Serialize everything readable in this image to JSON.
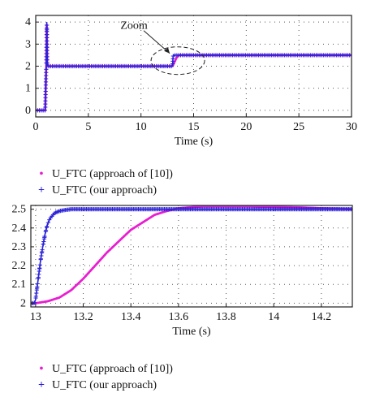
{
  "colors": {
    "approach10": "#e81fd0",
    "ours": "#2b22d6",
    "axes_bg": "#ffffff",
    "grid": "#555555"
  },
  "legend": [
    {
      "marker": "•",
      "label": "U_FTC (approach of [10])",
      "color": "#e81fd0"
    },
    {
      "marker": "+",
      "label": "U_FTC (our approach)",
      "color": "#2b22d6"
    }
  ],
  "chart_data": [
    {
      "type": "line",
      "xlabel": "Time (s)",
      "ylabel": "",
      "xlim": [
        0,
        30
      ],
      "ylim": [
        -0.3,
        4.3
      ],
      "xticks": [
        0,
        5,
        10,
        15,
        20,
        25,
        30
      ],
      "yticks": [
        0,
        1,
        2,
        3,
        4
      ],
      "grid": true,
      "annotation": {
        "text": "Zoom",
        "target_x": 13.5,
        "target_y": 2.25
      },
      "series": [
        {
          "name": "U_FTC (approach of [10])",
          "color": "#e81fd0",
          "x": [
            0,
            0.9,
            1.0,
            1.05,
            1.1,
            13.0,
            13.2,
            13.4,
            13.6,
            30
          ],
          "y": [
            0,
            0,
            2.0,
            3.9,
            2.0,
            2.0,
            2.2,
            2.4,
            2.5,
            2.5
          ]
        },
        {
          "name": "U_FTC (our approach)",
          "color": "#2b22d6",
          "x": [
            0,
            0.9,
            1.0,
            1.05,
            1.1,
            13.0,
            13.05,
            13.1,
            30
          ],
          "y": [
            0,
            0,
            2.0,
            4.0,
            2.0,
            2.0,
            2.45,
            2.5,
            2.5
          ]
        }
      ]
    },
    {
      "type": "line",
      "xlabel": "Time (s)",
      "ylabel": "",
      "xlim": [
        12.98,
        14.33
      ],
      "ylim": [
        1.98,
        2.52
      ],
      "xticks": [
        13,
        13.2,
        13.4,
        13.6,
        13.8,
        14,
        14.2
      ],
      "yticks": [
        2,
        2.1,
        2.2,
        2.3,
        2.4,
        2.5
      ],
      "grid": true,
      "series": [
        {
          "name": "U_FTC (approach of [10])",
          "color": "#e81fd0",
          "x": [
            12.98,
            13.0,
            13.05,
            13.1,
            13.15,
            13.2,
            13.25,
            13.3,
            13.35,
            13.4,
            13.45,
            13.5,
            13.55,
            13.6,
            13.7,
            13.8,
            13.9,
            14.0,
            14.1,
            14.2,
            14.33
          ],
          "y": [
            2.0,
            2.0,
            2.01,
            2.03,
            2.07,
            2.13,
            2.2,
            2.27,
            2.33,
            2.39,
            2.43,
            2.47,
            2.49,
            2.505,
            2.515,
            2.515,
            2.515,
            2.512,
            2.51,
            2.505,
            2.5
          ]
        },
        {
          "name": "U_FTC (our approach)",
          "color": "#2b22d6",
          "x": [
            12.98,
            12.995,
            13.0,
            13.01,
            13.02,
            13.03,
            13.04,
            13.05,
            13.06,
            13.08,
            13.1,
            13.12,
            13.15,
            13.2,
            13.3,
            13.5,
            14.33
          ],
          "y": [
            2.0,
            2.0,
            2.02,
            2.12,
            2.22,
            2.3,
            2.37,
            2.42,
            2.45,
            2.48,
            2.49,
            2.495,
            2.5,
            2.5,
            2.5,
            2.5,
            2.5
          ]
        }
      ]
    }
  ]
}
